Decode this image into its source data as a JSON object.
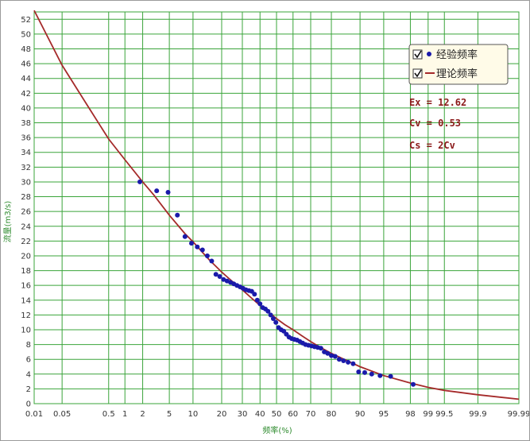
{
  "chart_data": {
    "type": "scatter",
    "xlabel": "频率(%)",
    "ylabel": "流量(m3/s)",
    "x_scale": "probability",
    "x_ticks": [
      0.01,
      0.05,
      0.5,
      1,
      2,
      5,
      10,
      20,
      30,
      40,
      50,
      60,
      70,
      80,
      90,
      95,
      98,
      99,
      99.5,
      99.9,
      99.99
    ],
    "x_tick_labels": [
      "0.01",
      "0.05",
      "0.5",
      "1",
      "2",
      "5",
      "10",
      "20",
      "30",
      "40",
      "50",
      "60",
      "70",
      "80",
      "90",
      "95",
      "98",
      "99",
      "99.5",
      "99.9",
      "99.99"
    ],
    "ylim": [
      0,
      53
    ],
    "y_ticks": [
      0,
      2,
      4,
      6,
      8,
      10,
      12,
      14,
      16,
      18,
      20,
      22,
      24,
      26,
      28,
      30,
      32,
      34,
      36,
      38,
      40,
      42,
      44,
      46,
      48,
      50,
      52
    ],
    "grid": true,
    "legend_position": "top-right",
    "legend": [
      {
        "label": "经验频率",
        "checked": true,
        "marker": "dot",
        "color": "#1a1aaa"
      },
      {
        "label": "理论频率",
        "checked": true,
        "marker": "line",
        "color": "#a52a2a"
      }
    ],
    "annotations": [
      "Ex = 12.62",
      "Cv = 0.53",
      "Cs = 2Cv"
    ],
    "series": [
      {
        "type": "scatter",
        "color": "#1a1aaa",
        "x": [
          1.8,
          3.3,
          4.8,
          6.4,
          8.0,
          9.6,
          11.2,
          12.8,
          14.4,
          16.0,
          17.6,
          19.2,
          20.8,
          22.4,
          24.0,
          25.6,
          27.2,
          28.8,
          30.4,
          32.0,
          33.6,
          35.2,
          36.8,
          38.4,
          40.0,
          41.6,
          43.2,
          44.8,
          46.4,
          48.0,
          49.6,
          51.2,
          52.8,
          54.4,
          56.0,
          57.6,
          59.2,
          60.8,
          62.4,
          64.0,
          65.6,
          67.2,
          68.8,
          70.4,
          72.0,
          73.6,
          75.2,
          76.8,
          78.4,
          80.0,
          81.6,
          83.2,
          84.8,
          86.4,
          88.0,
          89.6,
          91.2,
          92.8,
          94.4,
          96.0,
          98.2
        ],
        "y": [
          30.0,
          28.8,
          28.6,
          25.5,
          22.6,
          21.7,
          21.2,
          20.8,
          20.0,
          19.3,
          17.5,
          17.2,
          16.8,
          16.6,
          16.4,
          16.2,
          16.0,
          15.8,
          15.6,
          15.4,
          15.3,
          15.2,
          14.8,
          14.0,
          13.5,
          13.0,
          12.8,
          12.5,
          12.0,
          11.5,
          11.0,
          10.3,
          10.0,
          9.8,
          9.4,
          9.0,
          8.8,
          8.7,
          8.6,
          8.4,
          8.2,
          8.0,
          7.9,
          7.8,
          7.7,
          7.6,
          7.5,
          7.0,
          6.8,
          6.5,
          6.4,
          6.0,
          5.8,
          5.6,
          5.4,
          4.3,
          4.2,
          4.0,
          3.8,
          3.7,
          2.6
        ]
      },
      {
        "type": "line",
        "color": "#a52a2a",
        "x": [
          0.01,
          0.05,
          0.2,
          0.5,
          1,
          2,
          3,
          5,
          8,
          10,
          15,
          20,
          25,
          30,
          35,
          40,
          45,
          50,
          55,
          60,
          65,
          70,
          75,
          80,
          85,
          90,
          95,
          98,
          99,
          99.5,
          99.9,
          99.99
        ],
        "y": [
          53.2,
          45.8,
          40.0,
          35.8,
          33.0,
          30.0,
          28.2,
          25.5,
          23.0,
          21.9,
          19.5,
          17.8,
          16.5,
          15.4,
          14.3,
          13.3,
          12.4,
          11.5,
          10.7,
          10.0,
          9.2,
          8.4,
          7.6,
          6.8,
          6.0,
          5.0,
          3.8,
          2.8,
          2.2,
          1.8,
          1.2,
          0.6
        ]
      }
    ]
  }
}
